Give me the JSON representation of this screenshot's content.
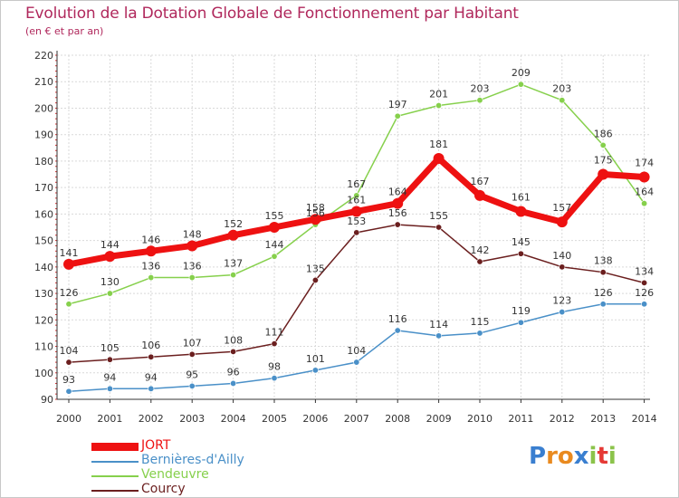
{
  "title": "Evolution de la Dotation Globale de Fonctionnement par Habitant",
  "subtitle": "(en € et par an)",
  "logo_text": "Proxiti",
  "colors": {
    "title": "#b0285c",
    "grid": "#d9d9d9",
    "axis": "#333333",
    "tick_minor": "#d32f2f"
  },
  "chart_data": {
    "type": "line",
    "title": "Evolution de la Dotation Globale de Fonctionnement par Habitant",
    "xlabel": "",
    "ylabel": "(en € et par an)",
    "ylim": [
      90,
      220
    ],
    "yticks": [
      90,
      100,
      110,
      120,
      130,
      140,
      150,
      160,
      170,
      180,
      190,
      200,
      210,
      220
    ],
    "categories": [
      "2000",
      "2001",
      "2002",
      "2003",
      "2004",
      "2005",
      "2006",
      "2007",
      "2008",
      "2009",
      "2010",
      "2011",
      "2012",
      "2013",
      "2014"
    ],
    "grid": true,
    "legend_position": "bottom-left",
    "series": [
      {
        "name": "JORT",
        "color": "#ee1111",
        "label_color": "#333333",
        "values": [
          141,
          144,
          146,
          148,
          152,
          155,
          158,
          161,
          164,
          181,
          167,
          161,
          157,
          175,
          174
        ]
      },
      {
        "name": "Bernières-d'Ailly",
        "color": "#4a90c8",
        "label_color": "#333333",
        "values": [
          93,
          94,
          94,
          95,
          96,
          98,
          101,
          104,
          116,
          114,
          115,
          119,
          123,
          126,
          126
        ]
      },
      {
        "name": "Vendeuvre",
        "color": "#86d04c",
        "label_color": "#333333",
        "values": [
          126,
          130,
          136,
          136,
          137,
          144,
          156,
          167,
          197,
          201,
          203,
          209,
          203,
          186,
          164
        ]
      },
      {
        "name": "Courcy",
        "color": "#6b1f1f",
        "label_color": "#333333",
        "values": [
          104,
          105,
          106,
          107,
          108,
          111,
          135,
          153,
          156,
          155,
          142,
          145,
          140,
          138,
          134
        ]
      }
    ]
  }
}
